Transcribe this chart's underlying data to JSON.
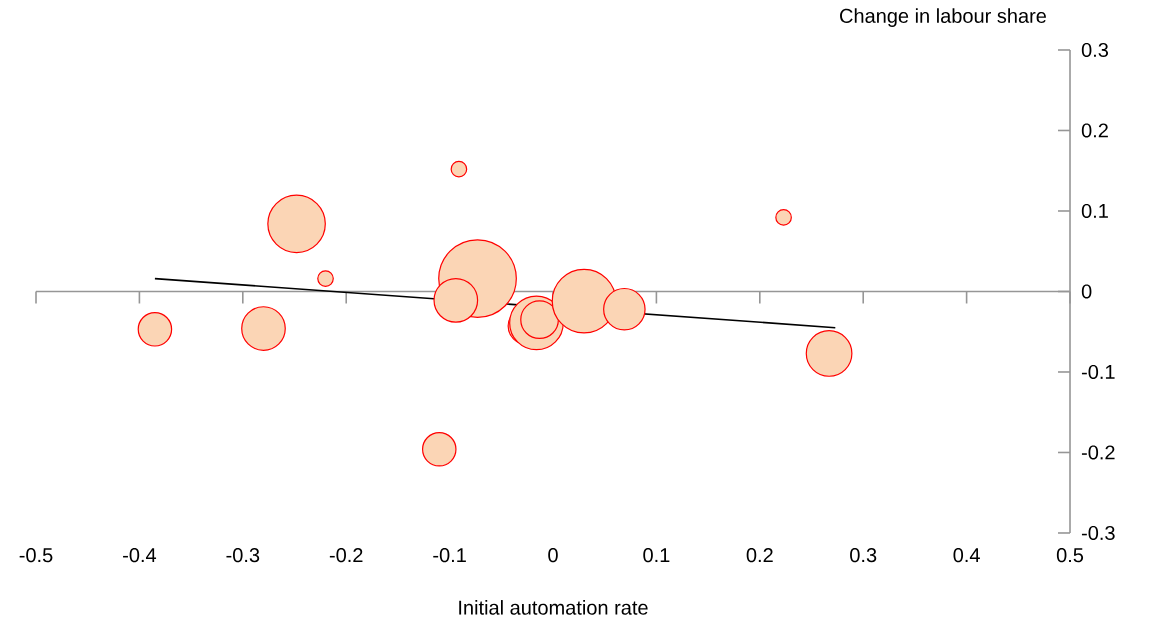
{
  "chart_data": {
    "type": "bubble",
    "xlabel": "Initial automation rate",
    "ylabel": "Change in labour share",
    "xlim": [
      -0.5,
      0.5
    ],
    "xticks": [
      -0.5,
      -0.4,
      -0.3,
      -0.2,
      -0.1,
      0,
      0.1,
      0.2,
      0.3,
      0.4,
      0.5
    ],
    "ylim": [
      -0.3,
      0.3
    ],
    "yticks": [
      -0.3,
      -0.2,
      -0.1,
      0,
      0.1,
      0.2,
      0.3
    ],
    "series": [
      {
        "color": "#fbd5b5",
        "x": [
          -0.385,
          -0.28,
          -0.248,
          -0.22,
          -0.091,
          -0.073,
          -0.094,
          -0.11,
          -0.026,
          -0.016,
          -0.013,
          0.03,
          0.069,
          0.223,
          0.267
        ],
        "values": [
          -0.047,
          -0.046,
          0.084,
          0.016,
          0.152,
          0.016,
          -0.011,
          -0.196,
          -0.043,
          -0.039,
          -0.035,
          -0.012,
          -0.022,
          0.092,
          -0.077
        ],
        "sizes": [
          0.2,
          0.33,
          0.56,
          0.05,
          0.05,
          1,
          0.33,
          0.2,
          0.23,
          0.49,
          0.25,
          0.68,
          0.3,
          0.05,
          0.36
        ]
      },
      {
        "type": "line",
        "color": "#000000",
        "x": [
          -0.385,
          0.273
        ],
        "values": [
          0.016,
          -0.045
        ]
      }
    ]
  }
}
